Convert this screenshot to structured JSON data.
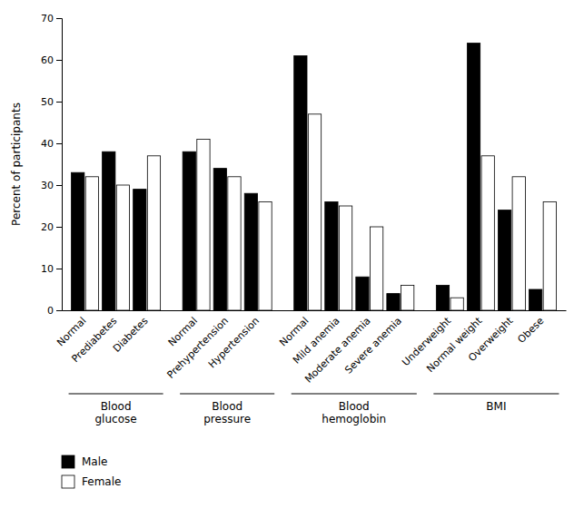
{
  "chart_data": {
    "type": "bar",
    "groups": [
      {
        "label": "Blood\nglucose",
        "categories": [
          "Normal",
          "Prediabetes",
          "Diabetes"
        ]
      },
      {
        "label": "Blood\npressure",
        "categories": [
          "Normal",
          "Prehypertension",
          "Hypertension"
        ]
      },
      {
        "label": "Blood\nhemoglobin",
        "categories": [
          "Normal",
          "Mild anemia",
          "Moderate anemia",
          "Severe anemia"
        ]
      },
      {
        "label": "BMI",
        "categories": [
          "Underweight",
          "Normal weight",
          "Overweight",
          "Obese"
        ]
      }
    ],
    "series": [
      {
        "name": "Male",
        "color": "#000000",
        "values": [
          33,
          38,
          29,
          38,
          34,
          28,
          61,
          26,
          8,
          4,
          6,
          64,
          24,
          5
        ]
      },
      {
        "name": "Female",
        "color": "#ffffff",
        "values": [
          32,
          30,
          37,
          41,
          32,
          26,
          47,
          25,
          20,
          6,
          3,
          37,
          32,
          26
        ]
      }
    ],
    "ylabel": "Percent of participants",
    "ylim": [
      0,
      70
    ],
    "yticks": [
      0,
      10,
      20,
      30,
      40,
      50,
      60,
      70
    ],
    "grid": false,
    "legend": "lower left"
  }
}
